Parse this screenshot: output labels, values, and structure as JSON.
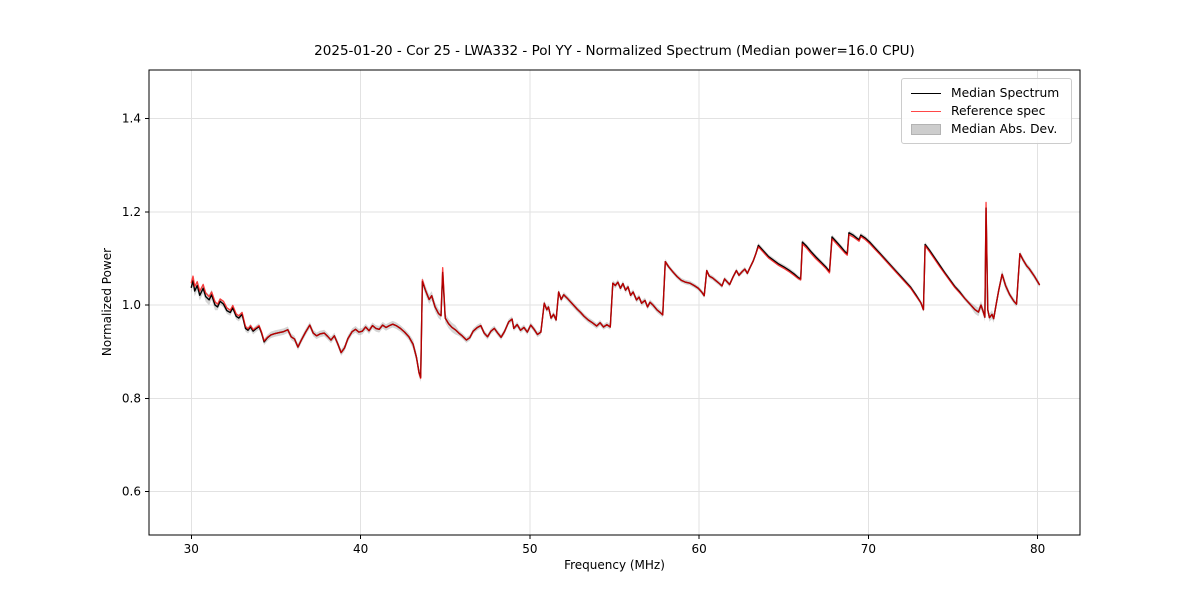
{
  "figure": {
    "background": "#ffffff"
  },
  "chart_data": {
    "type": "line",
    "title": "2025-01-20 - Cor 25 - LWA332 - Pol YY - Normalized Spectrum (Median power=16.0 CPU)",
    "xlabel": "Frequency (MHz)",
    "ylabel": "Normalized Power",
    "xlim": [
      27.5,
      82.5
    ],
    "ylim": [
      0.507,
      1.504
    ],
    "xticks": [
      30,
      40,
      50,
      60,
      70,
      80
    ],
    "xtick_labels": [
      "30",
      "40",
      "50",
      "60",
      "70",
      "80"
    ],
    "yticks": [
      0.6,
      0.8,
      1.0,
      1.2,
      1.4
    ],
    "ytick_labels": [
      "0.6",
      "0.8",
      "1.0",
      "1.2",
      "1.4"
    ],
    "grid": true,
    "grid_color": "#e2e2e2",
    "spine_color": "#000000",
    "legend_position": "upper right",
    "series": [
      {
        "name": "Median Spectrum",
        "type": "line",
        "color": "#000000",
        "opacity": 1.0
      },
      {
        "name": "Reference spec",
        "type": "line",
        "color": "#ff0000",
        "opacity": 0.72
      },
      {
        "name": "Median Abs. Dev.",
        "type": "band",
        "color": "#909090",
        "opacity": 0.38
      }
    ],
    "points_format": [
      "frequency_mhz",
      "median_spectrum",
      "reference_spec"
    ],
    "points": [
      [
        30.0,
        1.038,
        1.048
      ],
      [
        30.1,
        1.052,
        1.062
      ],
      [
        30.2,
        1.03,
        1.04
      ],
      [
        30.35,
        1.042,
        1.05
      ],
      [
        30.5,
        1.021,
        1.03
      ],
      [
        30.7,
        1.036,
        1.044
      ],
      [
        30.85,
        1.018,
        1.026
      ],
      [
        31.05,
        1.011,
        1.018
      ],
      [
        31.2,
        1.022,
        1.028
      ],
      [
        31.4,
        1.0,
        1.007
      ],
      [
        31.55,
        0.996,
        1.002
      ],
      [
        31.7,
        1.008,
        1.013
      ],
      [
        31.9,
        1.002,
        1.008
      ],
      [
        32.1,
        0.988,
        0.994
      ],
      [
        32.3,
        0.984,
        0.989
      ],
      [
        32.45,
        0.994,
        0.999
      ],
      [
        32.65,
        0.976,
        0.981
      ],
      [
        32.8,
        0.972,
        0.977
      ],
      [
        33.0,
        0.98,
        0.984
      ],
      [
        33.2,
        0.95,
        0.954
      ],
      [
        33.35,
        0.946,
        0.949
      ],
      [
        33.5,
        0.953,
        0.956
      ],
      [
        33.65,
        0.944,
        0.947
      ],
      [
        33.85,
        0.95,
        0.952
      ],
      [
        34.0,
        0.954,
        0.956
      ],
      [
        34.15,
        0.94,
        0.942
      ],
      [
        34.3,
        0.921,
        0.923
      ],
      [
        34.5,
        0.93,
        0.931
      ],
      [
        34.7,
        0.936,
        0.936
      ],
      [
        34.95,
        0.939,
        0.939
      ],
      [
        35.2,
        0.941,
        0.941
      ],
      [
        35.45,
        0.943,
        0.943
      ],
      [
        35.7,
        0.947,
        0.947
      ],
      [
        35.9,
        0.932,
        0.932
      ],
      [
        36.1,
        0.927,
        0.927
      ],
      [
        36.3,
        0.91,
        0.91
      ],
      [
        36.5,
        0.925,
        0.925
      ],
      [
        36.75,
        0.942,
        0.942
      ],
      [
        37.0,
        0.957,
        0.957
      ],
      [
        37.2,
        0.94,
        0.94
      ],
      [
        37.4,
        0.934,
        0.934
      ],
      [
        37.6,
        0.938,
        0.938
      ],
      [
        37.85,
        0.94,
        0.94
      ],
      [
        38.05,
        0.933,
        0.933
      ],
      [
        38.25,
        0.925,
        0.925
      ],
      [
        38.45,
        0.934,
        0.934
      ],
      [
        38.65,
        0.917,
        0.917
      ],
      [
        38.85,
        0.898,
        0.898
      ],
      [
        39.05,
        0.908,
        0.908
      ],
      [
        39.25,
        0.928,
        0.928
      ],
      [
        39.5,
        0.943,
        0.943
      ],
      [
        39.7,
        0.948,
        0.948
      ],
      [
        39.9,
        0.942,
        0.942
      ],
      [
        40.1,
        0.944,
        0.944
      ],
      [
        40.3,
        0.953,
        0.953
      ],
      [
        40.5,
        0.945,
        0.945
      ],
      [
        40.7,
        0.956,
        0.956
      ],
      [
        40.9,
        0.95,
        0.95
      ],
      [
        41.1,
        0.948,
        0.948
      ],
      [
        41.3,
        0.957,
        0.957
      ],
      [
        41.5,
        0.952,
        0.952
      ],
      [
        41.7,
        0.956,
        0.956
      ],
      [
        41.9,
        0.959,
        0.959
      ],
      [
        42.1,
        0.956,
        0.956
      ],
      [
        42.35,
        0.95,
        0.95
      ],
      [
        42.6,
        0.942,
        0.942
      ],
      [
        42.85,
        0.932,
        0.932
      ],
      [
        43.1,
        0.916,
        0.916
      ],
      [
        43.3,
        0.888,
        0.888
      ],
      [
        43.45,
        0.856,
        0.854
      ],
      [
        43.55,
        0.845,
        0.843
      ],
      [
        43.65,
        1.05,
        1.054
      ],
      [
        43.85,
        1.03,
        1.03
      ],
      [
        44.05,
        1.012,
        1.012
      ],
      [
        44.2,
        1.02,
        1.02
      ],
      [
        44.4,
        0.996,
        0.996
      ],
      [
        44.6,
        0.982,
        0.982
      ],
      [
        44.75,
        0.977,
        0.977
      ],
      [
        44.85,
        1.07,
        1.08
      ],
      [
        45.0,
        0.972,
        0.972
      ],
      [
        45.2,
        0.96,
        0.96
      ],
      [
        45.4,
        0.952,
        0.952
      ],
      [
        45.6,
        0.947,
        0.947
      ],
      [
        45.8,
        0.94,
        0.94
      ],
      [
        46.0,
        0.934,
        0.934
      ],
      [
        46.25,
        0.925,
        0.925
      ],
      [
        46.45,
        0.93,
        0.93
      ],
      [
        46.65,
        0.944,
        0.944
      ],
      [
        46.9,
        0.952,
        0.952
      ],
      [
        47.1,
        0.956,
        0.956
      ],
      [
        47.3,
        0.94,
        0.94
      ],
      [
        47.5,
        0.932,
        0.932
      ],
      [
        47.7,
        0.944,
        0.944
      ],
      [
        47.9,
        0.95,
        0.95
      ],
      [
        48.1,
        0.94,
        0.94
      ],
      [
        48.3,
        0.931,
        0.931
      ],
      [
        48.5,
        0.943,
        0.943
      ],
      [
        48.75,
        0.964,
        0.964
      ],
      [
        48.95,
        0.97,
        0.97
      ],
      [
        49.05,
        0.95,
        0.95
      ],
      [
        49.25,
        0.958,
        0.958
      ],
      [
        49.45,
        0.946,
        0.946
      ],
      [
        49.65,
        0.952,
        0.952
      ],
      [
        49.85,
        0.942,
        0.942
      ],
      [
        50.05,
        0.957,
        0.957
      ],
      [
        50.25,
        0.948,
        0.948
      ],
      [
        50.45,
        0.937,
        0.937
      ],
      [
        50.65,
        0.942,
        0.942
      ],
      [
        50.85,
        1.004,
        1.004
      ],
      [
        51.0,
        0.99,
        0.99
      ],
      [
        51.1,
        0.996,
        0.996
      ],
      [
        51.25,
        0.972,
        0.972
      ],
      [
        51.4,
        0.98,
        0.98
      ],
      [
        51.55,
        0.968,
        0.968
      ],
      [
        51.7,
        1.028,
        1.028
      ],
      [
        51.85,
        1.012,
        1.012
      ],
      [
        52.0,
        1.022,
        1.022
      ],
      [
        52.2,
        1.015,
        1.015
      ],
      [
        52.4,
        1.007,
        1.007
      ],
      [
        52.6,
        0.999,
        0.999
      ],
      [
        52.8,
        0.991,
        0.991
      ],
      [
        53.0,
        0.984,
        0.984
      ],
      [
        53.2,
        0.976,
        0.976
      ],
      [
        53.45,
        0.968,
        0.968
      ],
      [
        53.7,
        0.962,
        0.962
      ],
      [
        53.95,
        0.955,
        0.955
      ],
      [
        54.15,
        0.962,
        0.962
      ],
      [
        54.35,
        0.953,
        0.953
      ],
      [
        54.55,
        0.958,
        0.958
      ],
      [
        54.75,
        0.953,
        0.953
      ],
      [
        54.9,
        1.047,
        1.047
      ],
      [
        55.05,
        1.042,
        1.042
      ],
      [
        55.2,
        1.049,
        1.049
      ],
      [
        55.35,
        1.036,
        1.036
      ],
      [
        55.5,
        1.046,
        1.046
      ],
      [
        55.65,
        1.032,
        1.032
      ],
      [
        55.8,
        1.039,
        1.039
      ],
      [
        55.95,
        1.021,
        1.021
      ],
      [
        56.1,
        1.028,
        1.028
      ],
      [
        56.3,
        1.011,
        1.011
      ],
      [
        56.45,
        1.017,
        1.017
      ],
      [
        56.6,
        1.004,
        1.004
      ],
      [
        56.8,
        1.01,
        1.01
      ],
      [
        56.95,
        0.996,
        0.996
      ],
      [
        57.1,
        1.006,
        1.006
      ],
      [
        57.3,
        0.999,
        0.999
      ],
      [
        57.5,
        0.99,
        0.99
      ],
      [
        57.7,
        0.984,
        0.984
      ],
      [
        57.85,
        0.979,
        0.979
      ],
      [
        58.0,
        1.093,
        1.093
      ],
      [
        58.2,
        1.082,
        1.082
      ],
      [
        58.45,
        1.071,
        1.071
      ],
      [
        58.7,
        1.061,
        1.061
      ],
      [
        58.95,
        1.053,
        1.053
      ],
      [
        59.2,
        1.049,
        1.049
      ],
      [
        59.45,
        1.047,
        1.047
      ],
      [
        59.7,
        1.042,
        1.042
      ],
      [
        59.95,
        1.036,
        1.036
      ],
      [
        60.15,
        1.028,
        1.028
      ],
      [
        60.3,
        1.02,
        1.02
      ],
      [
        60.45,
        1.074,
        1.074
      ],
      [
        60.6,
        1.062,
        1.062
      ],
      [
        60.8,
        1.058,
        1.058
      ],
      [
        61.0,
        1.052,
        1.052
      ],
      [
        61.2,
        1.046,
        1.046
      ],
      [
        61.35,
        1.041,
        1.041
      ],
      [
        61.5,
        1.056,
        1.056
      ],
      [
        61.65,
        1.05,
        1.05
      ],
      [
        61.8,
        1.044,
        1.044
      ],
      [
        62.0,
        1.06,
        1.06
      ],
      [
        62.2,
        1.074,
        1.074
      ],
      [
        62.35,
        1.064,
        1.064
      ],
      [
        62.55,
        1.072,
        1.072
      ],
      [
        62.7,
        1.077,
        1.077
      ],
      [
        62.85,
        1.068,
        1.068
      ],
      [
        63.0,
        1.08,
        1.08
      ],
      [
        63.2,
        1.095,
        1.095
      ],
      [
        63.35,
        1.11,
        1.11
      ],
      [
        63.5,
        1.128,
        1.125
      ],
      [
        63.7,
        1.12,
        1.117
      ],
      [
        63.9,
        1.112,
        1.109
      ],
      [
        64.1,
        1.104,
        1.101
      ],
      [
        64.4,
        1.096,
        1.093
      ],
      [
        64.7,
        1.088,
        1.085
      ],
      [
        65.0,
        1.082,
        1.079
      ],
      [
        65.3,
        1.075,
        1.072
      ],
      [
        65.6,
        1.067,
        1.064
      ],
      [
        65.85,
        1.059,
        1.057
      ],
      [
        66.0,
        1.056,
        1.054
      ],
      [
        66.1,
        1.135,
        1.131
      ],
      [
        66.35,
        1.126,
        1.122
      ],
      [
        66.6,
        1.115,
        1.111
      ],
      [
        66.9,
        1.103,
        1.099
      ],
      [
        67.2,
        1.092,
        1.089
      ],
      [
        67.5,
        1.081,
        1.078
      ],
      [
        67.7,
        1.072,
        1.069
      ],
      [
        67.85,
        1.146,
        1.142
      ],
      [
        68.1,
        1.136,
        1.132
      ],
      [
        68.35,
        1.126,
        1.122
      ],
      [
        68.6,
        1.115,
        1.112
      ],
      [
        68.75,
        1.11,
        1.107
      ],
      [
        68.85,
        1.155,
        1.151
      ],
      [
        69.1,
        1.15,
        1.146
      ],
      [
        69.3,
        1.144,
        1.141
      ],
      [
        69.45,
        1.14,
        1.137
      ],
      [
        69.55,
        1.15,
        1.147
      ],
      [
        69.8,
        1.144,
        1.141
      ],
      [
        70.1,
        1.134,
        1.131
      ],
      [
        70.4,
        1.122,
        1.119
      ],
      [
        70.7,
        1.11,
        1.108
      ],
      [
        71.0,
        1.098,
        1.096
      ],
      [
        71.3,
        1.086,
        1.084
      ],
      [
        71.6,
        1.074,
        1.072
      ],
      [
        71.9,
        1.062,
        1.06
      ],
      [
        72.2,
        1.05,
        1.048
      ],
      [
        72.5,
        1.038,
        1.036
      ],
      [
        72.8,
        1.022,
        1.02
      ],
      [
        73.1,
        1.005,
        1.005
      ],
      [
        73.25,
        0.99,
        0.99
      ],
      [
        73.35,
        1.13,
        1.127
      ],
      [
        73.6,
        1.118,
        1.115
      ],
      [
        73.9,
        1.102,
        1.099
      ],
      [
        74.2,
        1.086,
        1.083
      ],
      [
        74.5,
        1.07,
        1.068
      ],
      [
        74.8,
        1.055,
        1.053
      ],
      [
        75.1,
        1.04,
        1.038
      ],
      [
        75.4,
        1.028,
        1.026
      ],
      [
        75.7,
        1.014,
        1.014
      ],
      [
        76.0,
        1.002,
        1.002
      ],
      [
        76.3,
        0.99,
        0.99
      ],
      [
        76.5,
        0.985,
        0.985
      ],
      [
        76.65,
        1.0,
        1.0
      ],
      [
        76.8,
        0.984,
        0.984
      ],
      [
        76.88,
        0.974,
        0.974
      ],
      [
        76.95,
        1.208,
        1.22
      ],
      [
        77.05,
        0.99,
        0.99
      ],
      [
        77.15,
        0.973,
        0.973
      ],
      [
        77.3,
        0.98,
        0.98
      ],
      [
        77.4,
        0.971,
        0.971
      ],
      [
        77.55,
        1.002,
        1.002
      ],
      [
        77.7,
        1.032,
        1.032
      ],
      [
        77.9,
        1.066,
        1.066
      ],
      [
        78.1,
        1.042,
        1.042
      ],
      [
        78.35,
        1.022,
        1.022
      ],
      [
        78.6,
        1.008,
        1.008
      ],
      [
        78.75,
        1.002,
        1.002
      ],
      [
        78.85,
        1.058,
        1.058
      ],
      [
        78.95,
        1.11,
        1.11
      ],
      [
        79.15,
        1.096,
        1.096
      ],
      [
        79.35,
        1.084,
        1.084
      ],
      [
        79.5,
        1.078,
        1.078
      ],
      [
        79.65,
        1.07,
        1.07
      ],
      [
        79.8,
        1.062,
        1.062
      ],
      [
        80.0,
        1.05,
        1.05
      ],
      [
        80.1,
        1.044,
        1.044
      ]
    ],
    "mad_halfwidth_regions": [
      {
        "from": 30.0,
        "to": 31.5,
        "hw": 0.011
      },
      {
        "from": 31.5,
        "to": 43.0,
        "hw": 0.007
      },
      {
        "from": 43.0,
        "to": 45.6,
        "hw": 0.01
      },
      {
        "from": 45.6,
        "to": 58.0,
        "hw": 0.006
      },
      {
        "from": 58.0,
        "to": 76.0,
        "hw": 0.005
      },
      {
        "from": 76.0,
        "to": 78.2,
        "hw": 0.009
      },
      {
        "from": 78.2,
        "to": 80.2,
        "hw": 0.006
      }
    ]
  }
}
